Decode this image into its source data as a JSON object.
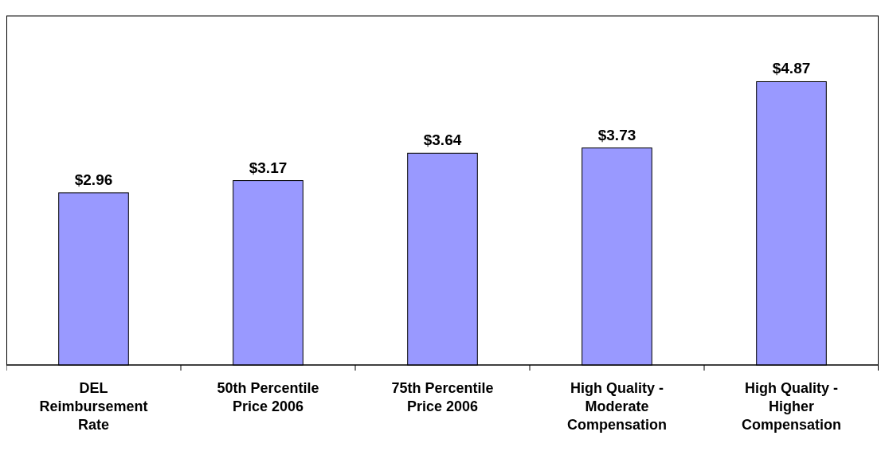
{
  "chart_data": {
    "type": "bar",
    "categories": [
      "DEL Reimbursement Rate",
      "50th Percentile Price 2006",
      "75th Percentile Price 2006",
      "High Quality - Moderate Compensation",
      "High Quality - Higher Compensation"
    ],
    "values": [
      2.96,
      3.17,
      3.64,
      3.73,
      4.87
    ],
    "value_labels": [
      "$2.96",
      "$3.17",
      "$3.64",
      "$3.73",
      "$4.87"
    ],
    "color": "#9999ff",
    "ylim": [
      0,
      6
    ],
    "tick_labels": "x"
  }
}
